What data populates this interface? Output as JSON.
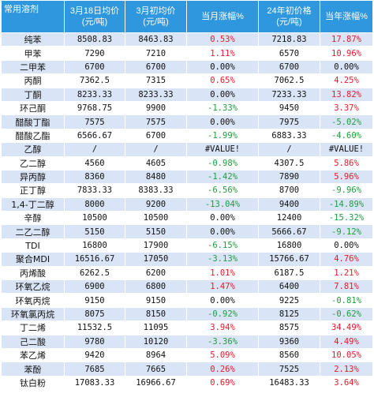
{
  "table": {
    "headers": [
      "常用溶剂",
      "3月18日均价\n(元/吨)",
      "3月初均价\n(元/吨)",
      "当月涨幅%",
      "24年初价格\n(元/吨)",
      "当年涨幅%"
    ],
    "rows": [
      [
        "纯苯",
        "8508.83",
        "8463.83",
        "0.53%",
        "7218.83",
        "17.87%"
      ],
      [
        "甲苯",
        "7290",
        "7210",
        "1.11%",
        "6570",
        "10.96%"
      ],
      [
        "二甲苯",
        "6700",
        "6700",
        "0.00%",
        "6700",
        "0.00%"
      ],
      [
        "丙酮",
        "7362.5",
        "7315",
        "0.65%",
        "7062.5",
        "4.25%"
      ],
      [
        "丁酮",
        "8233.33",
        "8233.33",
        "0.00%",
        "7233.33",
        "13.82%"
      ],
      [
        "环己酮",
        "9768.75",
        "9900",
        "-1.33%",
        "9450",
        "3.37%"
      ],
      [
        "醋酸丁酯",
        "7575",
        "7575",
        "0.00%",
        "7975",
        "-5.02%"
      ],
      [
        "醋酸乙酯",
        "6566.67",
        "6700",
        "-1.99%",
        "6883.33",
        "-4.60%"
      ],
      [
        "乙醇",
        "/",
        "/",
        "#VALUE!",
        "/",
        "#VALUE!"
      ],
      [
        "乙二醇",
        "4560",
        "4605",
        "-0.98%",
        "4307.5",
        "5.86%"
      ],
      [
        "异丙醇",
        "8360",
        "8480",
        "-1.42%",
        "7890",
        "5.96%"
      ],
      [
        "正丁醇",
        "7833.33",
        "8383.33",
        "-6.56%",
        "8700",
        "-9.96%"
      ],
      [
        "1,4-丁二醇",
        "8000",
        "9200",
        "-13.04%",
        "9400",
        "-14.89%"
      ],
      [
        "辛醇",
        "10500",
        "10500",
        "0.00%",
        "12400",
        "-15.32%"
      ],
      [
        "二乙二醇",
        "5150",
        "5150",
        "0.00%",
        "5666.67",
        "-9.12%"
      ],
      [
        "TDI",
        "16800",
        "17900",
        "-6.15%",
        "16800",
        "0.00%"
      ],
      [
        "聚合MDI",
        "16516.67",
        "17050",
        "-3.13%",
        "15766.67",
        "4.76%"
      ],
      [
        "丙烯酸",
        "6262.5",
        "6200",
        "1.01%",
        "6187.5",
        "1.21%"
      ],
      [
        "环氧乙烷",
        "6900",
        "6800",
        "1.47%",
        "6400",
        "7.81%"
      ],
      [
        "环氧丙烷",
        "9150",
        "9150",
        "0.00%",
        "9225",
        "-0.81%"
      ],
      [
        "环氧氯丙烷",
        "8075",
        "8150",
        "-0.92%",
        "8125",
        "-0.62%"
      ],
      [
        "丁二烯",
        "11532.5",
        "11095",
        "3.94%",
        "8575",
        "34.49%"
      ],
      [
        "己二酸",
        "9780",
        "10120",
        "-3.36%",
        "9360",
        "4.49%"
      ],
      [
        "苯乙烯",
        "9420",
        "8964",
        "5.09%",
        "8560",
        "10.05%"
      ],
      [
        "苯酚",
        "7685",
        "7665",
        "0.26%",
        "7525",
        "2.13%"
      ],
      [
        "钛白粉",
        "17083.33",
        "16966.67",
        "0.69%",
        "16483.33",
        "3.64%"
      ]
    ]
  },
  "colors": {
    "header_bg": "#2e97dd",
    "row_band": "#d9e5f6",
    "positive": "#e8192c",
    "negative": "#1e9e3c"
  }
}
